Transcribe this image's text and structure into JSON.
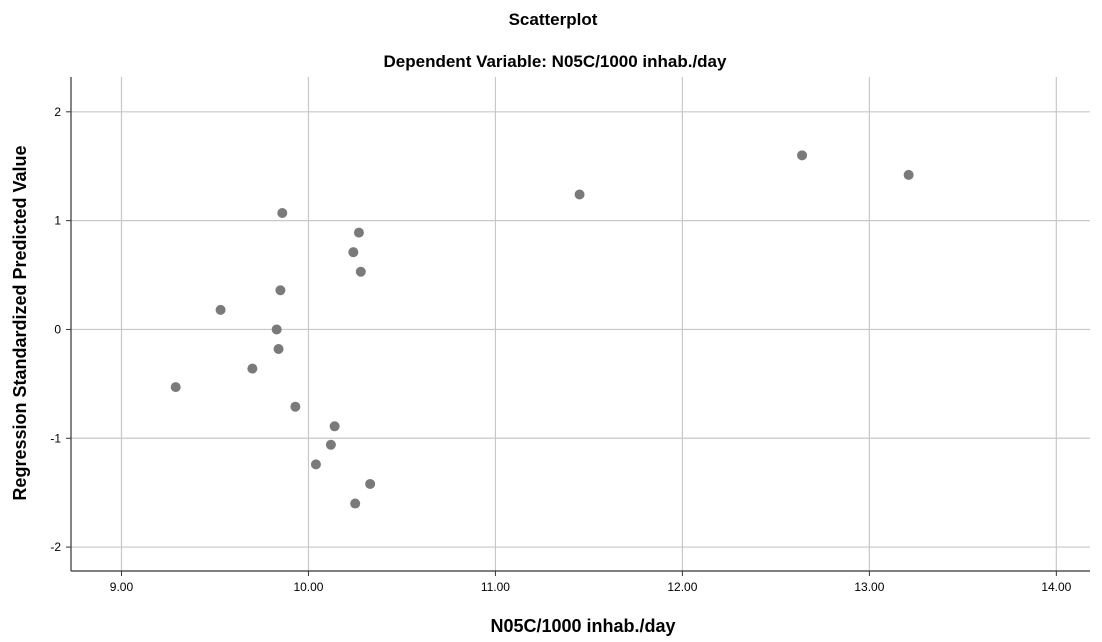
{
  "chart_data": {
    "type": "scatter",
    "title": "Scatterplot",
    "subtitle": "Dependent Variable: N05C/1000 inhab./day",
    "xlabel": "N05C/1000 inhab./day",
    "ylabel": "Regression Standardized Predicted Value",
    "xlim": [
      8.73,
      14.18
    ],
    "ylim": [
      -2.22,
      2.32
    ],
    "xticks": [
      "9.00",
      "10.00",
      "11.00",
      "12.00",
      "13.00",
      "14.00"
    ],
    "yticks": [
      "2",
      "1",
      "0",
      "-1",
      "-2"
    ],
    "grid": true,
    "marker_color": "#7a7a7a",
    "points": [
      {
        "x": 9.29,
        "y": -0.53
      },
      {
        "x": 9.53,
        "y": 0.18
      },
      {
        "x": 9.7,
        "y": -0.36
      },
      {
        "x": 9.83,
        "y": 0.0
      },
      {
        "x": 9.84,
        "y": -0.18
      },
      {
        "x": 9.85,
        "y": 0.36
      },
      {
        "x": 9.86,
        "y": 1.07
      },
      {
        "x": 9.93,
        "y": -0.71
      },
      {
        "x": 10.04,
        "y": -1.24
      },
      {
        "x": 10.12,
        "y": -1.06
      },
      {
        "x": 10.14,
        "y": -0.89
      },
      {
        "x": 10.24,
        "y": 0.71
      },
      {
        "x": 10.25,
        "y": -1.6
      },
      {
        "x": 10.27,
        "y": 0.89
      },
      {
        "x": 10.28,
        "y": 0.53
      },
      {
        "x": 10.33,
        "y": -1.42
      },
      {
        "x": 11.45,
        "y": 1.24
      },
      {
        "x": 12.64,
        "y": 1.6
      },
      {
        "x": 13.21,
        "y": 1.42
      }
    ]
  }
}
